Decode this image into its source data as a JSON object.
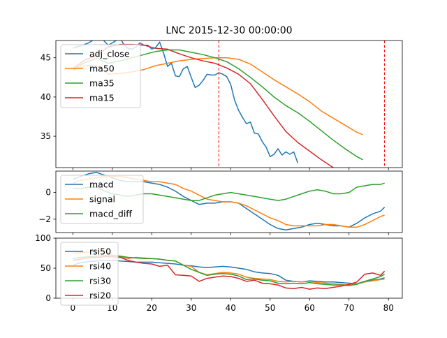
{
  "title": "LNC 2015-12-30 00:00:00",
  "colors": {
    "blue": "#1f77b4",
    "orange": "#ff7f0e",
    "green": "#2ca02c",
    "red": "#d62728",
    "vline": "#ff0000"
  },
  "chart_data": [
    {
      "type": "line",
      "panel": "price",
      "xlim": [
        -4.3,
        83.5
      ],
      "ylim": [
        31,
        47.2
      ],
      "yticks": [
        35,
        40,
        45
      ],
      "vlines": [
        37,
        79
      ],
      "vline_style": "dashed",
      "legend": "upper-left",
      "series": [
        {
          "name": "adj_close",
          "color": "blue",
          "x": [
            0,
            1,
            2,
            3,
            4,
            5,
            6,
            7,
            8,
            9,
            10,
            11,
            12,
            13,
            14,
            15,
            16,
            17,
            18,
            19,
            20,
            21,
            22,
            23,
            24,
            25,
            26,
            27,
            28,
            29,
            30,
            31,
            32,
            33,
            34,
            35,
            36,
            37,
            38,
            39,
            40,
            41,
            42,
            43,
            44,
            45,
            46,
            47,
            48,
            49,
            50,
            51,
            52,
            53,
            54,
            55,
            56,
            57
          ],
          "y": [
            46.2,
            46.4,
            46.5,
            46.7,
            46.9,
            47.2,
            47.6,
            47.9,
            47.1,
            46.6,
            46.9,
            47.2,
            47.5,
            46.6,
            46.2,
            46.1,
            46.4,
            46.9,
            46.6,
            46.6,
            46.1,
            46.3,
            47.0,
            45.6,
            43.9,
            44.3,
            42.7,
            42.6,
            43.6,
            43.9,
            42.5,
            41.2,
            41.5,
            42.1,
            42.9,
            42.8,
            42.8,
            43.1,
            42.9,
            42.6,
            41.6,
            39.6,
            38.3,
            37.4,
            36.6,
            36.8,
            35.4,
            35.3,
            34.3,
            33.6,
            32.4,
            32.7,
            33.4,
            32.6,
            33.0,
            32.7,
            33.0,
            31.6
          ]
        },
        {
          "name": "ma50",
          "color": "orange",
          "x": [
            0,
            3,
            6,
            9,
            12,
            15,
            18,
            21,
            24,
            27,
            30,
            33,
            36,
            39,
            42,
            45,
            48,
            51,
            54,
            57,
            60,
            63,
            66,
            69,
            72,
            73.5
          ],
          "y": [
            43.4,
            44.0,
            44.0,
            42.9,
            43.0,
            43.2,
            43.5,
            44.0,
            44.3,
            44.6,
            44.8,
            44.9,
            45.0,
            45.0,
            44.8,
            44.2,
            43.2,
            42.2,
            41.3,
            40.4,
            39.4,
            38.2,
            37.3,
            36.4,
            35.5,
            35.2
          ]
        },
        {
          "name": "ma35",
          "color": "green",
          "x": [
            0,
            3,
            6,
            9,
            12,
            15,
            18,
            21,
            24,
            27,
            30,
            33,
            36,
            39,
            42,
            45,
            48,
            51,
            54,
            57,
            60,
            63,
            66,
            69,
            72,
            73.5
          ],
          "y": [
            43.4,
            44.4,
            44.9,
            44.3,
            44.6,
            45.0,
            45.4,
            45.8,
            46.0,
            46.0,
            45.7,
            45.4,
            45.0,
            44.5,
            43.6,
            42.5,
            41.3,
            40.0,
            38.9,
            38.0,
            36.9,
            35.7,
            34.5,
            33.4,
            32.4,
            32.0
          ]
        },
        {
          "name": "ma15",
          "color": "red",
          "x": [
            0,
            3,
            6,
            9,
            12,
            15,
            18,
            21,
            24,
            27,
            30,
            33,
            36,
            39,
            42,
            45,
            48,
            51,
            54,
            57,
            60,
            63,
            66,
            68
          ],
          "y": [
            43.6,
            44.7,
            45.3,
            46.4,
            46.7,
            46.7,
            46.6,
            46.2,
            46.1,
            45.5,
            45.0,
            44.6,
            44.3,
            43.7,
            42.9,
            41.7,
            39.7,
            37.6,
            35.6,
            34.2,
            33.1,
            32.0,
            31.0,
            30.4
          ]
        }
      ]
    },
    {
      "type": "line",
      "panel": "macd",
      "xlim": [
        -4.3,
        83.5
      ],
      "ylim": [
        -3.0,
        1.6
      ],
      "yticks": [
        -2,
        0
      ],
      "legend": "upper-left",
      "series": [
        {
          "name": "macd",
          "color": "blue",
          "x": [
            0,
            2,
            4,
            6,
            8,
            10,
            12,
            14,
            16,
            18,
            20,
            22,
            24,
            26,
            28,
            30,
            32,
            34,
            36,
            38,
            40,
            42,
            44,
            46,
            48,
            50,
            52,
            54,
            56,
            58,
            60,
            62,
            64,
            66,
            68,
            70,
            72,
            74,
            76,
            78,
            79
          ],
          "y": [
            1.0,
            1.2,
            1.4,
            1.5,
            1.3,
            1.1,
            0.9,
            0.8,
            0.8,
            0.8,
            0.7,
            0.6,
            0.4,
            0.1,
            -0.3,
            -0.6,
            -0.9,
            -0.8,
            -0.8,
            -0.7,
            -0.7,
            -0.8,
            -1.2,
            -1.6,
            -2.0,
            -2.4,
            -2.7,
            -2.8,
            -2.7,
            -2.6,
            -2.4,
            -2.3,
            -2.4,
            -2.5,
            -2.5,
            -2.6,
            -2.3,
            -1.9,
            -1.6,
            -1.4,
            -1.1
          ]
        },
        {
          "name": "signal",
          "color": "orange",
          "x": [
            0,
            2,
            4,
            6,
            8,
            10,
            12,
            14,
            16,
            18,
            20,
            22,
            24,
            26,
            28,
            30,
            32,
            34,
            36,
            38,
            40,
            42,
            44,
            46,
            48,
            50,
            52,
            54,
            56,
            58,
            60,
            62,
            64,
            66,
            68,
            70,
            72,
            74,
            76,
            78,
            79
          ],
          "y": [
            0.7,
            0.9,
            1.0,
            1.1,
            1.2,
            1.2,
            1.2,
            1.1,
            1.0,
            0.9,
            0.8,
            0.8,
            0.7,
            0.6,
            0.3,
            0.1,
            -0.2,
            -0.5,
            -0.6,
            -0.7,
            -0.7,
            -0.8,
            -1.0,
            -1.3,
            -1.6,
            -1.9,
            -2.1,
            -2.4,
            -2.5,
            -2.5,
            -2.5,
            -2.5,
            -2.4,
            -2.4,
            -2.5,
            -2.6,
            -2.6,
            -2.4,
            -2.1,
            -1.8,
            -1.7
          ]
        },
        {
          "name": "macd_diff",
          "color": "green",
          "x": [
            0,
            2,
            4,
            6,
            8,
            10,
            12,
            14,
            16,
            18,
            20,
            22,
            24,
            26,
            28,
            30,
            32,
            34,
            36,
            38,
            40,
            42,
            44,
            46,
            48,
            50,
            52,
            54,
            56,
            58,
            60,
            62,
            64,
            66,
            68,
            70,
            72,
            74,
            76,
            78,
            79
          ],
          "y": [
            0.3,
            0.3,
            0.4,
            0.4,
            0.1,
            -0.1,
            -0.2,
            -0.3,
            -0.2,
            -0.1,
            -0.1,
            -0.2,
            -0.3,
            -0.4,
            -0.5,
            -0.6,
            -0.6,
            -0.4,
            -0.2,
            -0.1,
            0.0,
            -0.1,
            -0.2,
            -0.3,
            -0.4,
            -0.5,
            -0.6,
            -0.5,
            -0.3,
            -0.1,
            0.1,
            0.2,
            0.1,
            -0.1,
            -0.1,
            0.0,
            0.4,
            0.5,
            0.6,
            0.6,
            0.7
          ]
        }
      ]
    },
    {
      "type": "line",
      "panel": "rsi",
      "xlim": [
        -4.3,
        83.5
      ],
      "ylim": [
        0,
        100
      ],
      "yticks": [
        0,
        50,
        100
      ],
      "xticks": [
        0,
        10,
        20,
        30,
        40,
        50,
        60,
        70,
        80
      ],
      "legend": "upper-left",
      "series": [
        {
          "name": "rsi50",
          "color": "blue",
          "x": [
            0,
            2,
            4,
            6,
            8,
            10,
            12,
            14,
            16,
            18,
            20,
            22,
            24,
            26,
            28,
            30,
            32,
            34,
            36,
            38,
            40,
            42,
            44,
            46,
            48,
            50,
            52,
            54,
            56,
            58,
            60,
            62,
            64,
            66,
            68,
            70,
            72,
            74,
            76,
            78,
            79
          ],
          "y": [
            55,
            59,
            61,
            62,
            63,
            63,
            62,
            61,
            60,
            60,
            60,
            59,
            58,
            57,
            55,
            54,
            52,
            51,
            52,
            53,
            52,
            50,
            48,
            44,
            42,
            41,
            38,
            30,
            28,
            27,
            29,
            28,
            27,
            27,
            26,
            25,
            24,
            28,
            30,
            32,
            34
          ]
        },
        {
          "name": "rsi40",
          "color": "orange",
          "x": [
            0,
            2,
            4,
            6,
            8,
            10,
            12,
            14,
            16,
            18,
            20,
            22,
            24,
            26,
            28,
            30,
            32,
            34,
            36,
            38,
            40,
            42,
            44,
            46,
            48,
            50,
            52,
            54,
            56,
            58,
            60,
            62,
            64,
            66,
            68,
            70,
            72,
            74,
            76,
            78,
            79
          ],
          "y": [
            75,
            76,
            77,
            78,
            78,
            72,
            69,
            66,
            68,
            67,
            66,
            65,
            63,
            62,
            55,
            53,
            43,
            39,
            41,
            43,
            42,
            40,
            35,
            33,
            32,
            31,
            28,
            27,
            28,
            27,
            28,
            26,
            25,
            24,
            23,
            22,
            24,
            27,
            29,
            31,
            32
          ]
        },
        {
          "name": "rsi30",
          "color": "green",
          "x": [
            0,
            2,
            4,
            6,
            8,
            10,
            12,
            14,
            16,
            18,
            20,
            22,
            24,
            26,
            28,
            30,
            32,
            34,
            36,
            38,
            40,
            42,
            44,
            46,
            48,
            50,
            52,
            54,
            56,
            58,
            60,
            62,
            64,
            66,
            68,
            70,
            72,
            74,
            76,
            78,
            79
          ],
          "y": [
            66,
            68,
            69,
            70,
            71,
            71,
            70,
            68,
            67,
            66,
            66,
            65,
            63,
            62,
            55,
            48,
            43,
            38,
            40,
            41,
            40,
            37,
            31,
            32,
            30,
            29,
            25,
            24,
            25,
            24,
            26,
            24,
            23,
            22,
            22,
            21,
            23,
            28,
            32,
            36,
            40
          ]
        },
        {
          "name": "rsi20",
          "color": "red",
          "x": [
            0,
            2,
            4,
            6,
            8,
            10,
            12,
            14,
            16,
            18,
            20,
            22,
            24,
            26,
            28,
            30,
            32,
            34,
            36,
            38,
            40,
            42,
            44,
            46,
            48,
            50,
            52,
            54,
            56,
            58,
            60,
            62,
            64,
            66,
            68,
            70,
            72,
            74,
            76,
            78,
            79
          ],
          "y": [
            63,
            65,
            67,
            68,
            69,
            69,
            68,
            63,
            60,
            58,
            57,
            53,
            55,
            39,
            38,
            37,
            28,
            33,
            35,
            37,
            36,
            33,
            28,
            30,
            25,
            24,
            22,
            17,
            16,
            18,
            15,
            17,
            16,
            18,
            20,
            23,
            27,
            40,
            42,
            38,
            45
          ]
        }
      ]
    }
  ]
}
